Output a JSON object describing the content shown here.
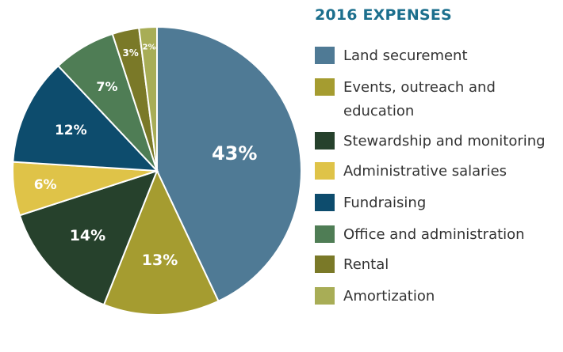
{
  "chart_data": {
    "type": "pie",
    "title": "2016 EXPENSES",
    "start_angle_deg": 0,
    "direction": "clockwise",
    "slices": [
      {
        "label": "Land securement",
        "value": 43,
        "display": "43%",
        "color": "#4f7a95"
      },
      {
        "label": "Events, outreach and education",
        "value": 13,
        "display": "13%",
        "color": "#a59c30"
      },
      {
        "label": "Stewardship and monitoring",
        "value": 14,
        "display": "14%",
        "color": "#26412c"
      },
      {
        "label": "Administrative salaries",
        "value": 6,
        "display": "6%",
        "color": "#dfc348"
      },
      {
        "label": "Fundraising",
        "value": 12,
        "display": "12%",
        "color": "#0d4c6d"
      },
      {
        "label": "Office and administration",
        "value": 7,
        "display": "7%",
        "color": "#4f7d55"
      },
      {
        "label": "Rental",
        "value": 3,
        "display": "3%",
        "color": "#7a7928"
      },
      {
        "label": "Amortization",
        "value": 2,
        "display": "2%",
        "color": "#a8ad56"
      }
    ]
  }
}
